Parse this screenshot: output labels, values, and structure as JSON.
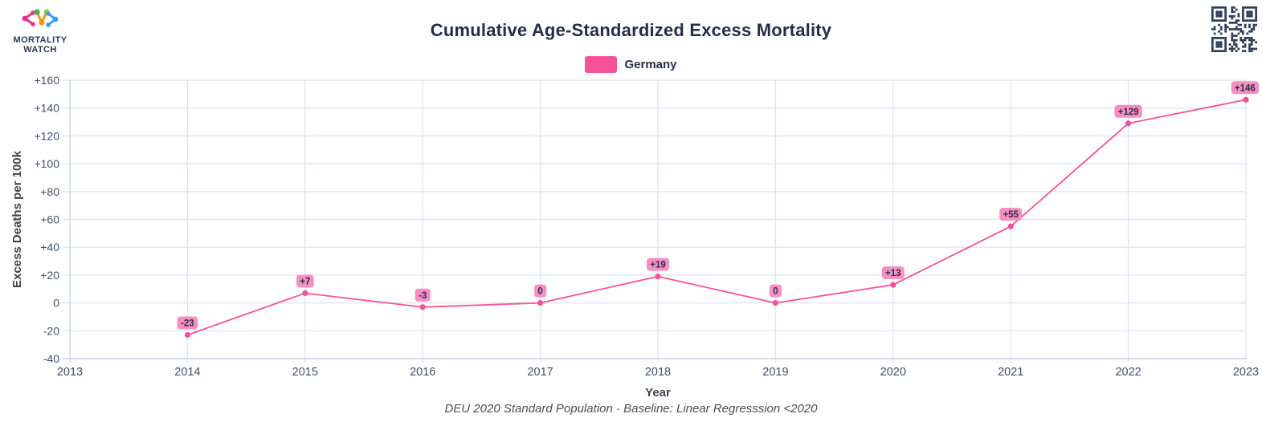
{
  "logo": {
    "line1": "MORTALITY",
    "line2": "WATCH"
  },
  "header": {
    "title": "Cumulative Age-Standardized Excess Mortality"
  },
  "legend": {
    "label": "Germany"
  },
  "caption": "DEU 2020 Standard Population · Baseline: Linear Regresssion <2020",
  "chart_data": {
    "type": "line",
    "title": "Cumulative Age-Standardized Excess Mortality",
    "xlabel": "Year",
    "ylabel": "Excess Deaths per 100k",
    "xlim": [
      2013,
      2023
    ],
    "ylim": [
      -40,
      160
    ],
    "grid": true,
    "legend_position": "top",
    "xticks": [
      2013,
      2014,
      2015,
      2016,
      2017,
      2018,
      2019,
      2020,
      2021,
      2022,
      2023
    ],
    "yticks": [
      {
        "v": 160,
        "label": "+160"
      },
      {
        "v": 140,
        "label": "+140"
      },
      {
        "v": 120,
        "label": "+120"
      },
      {
        "v": 100,
        "label": "+100"
      },
      {
        "v": 80,
        "label": "+80"
      },
      {
        "v": 60,
        "label": "+60"
      },
      {
        "v": 40,
        "label": "+40"
      },
      {
        "v": 20,
        "label": "+20"
      },
      {
        "v": 0,
        "label": "0"
      },
      {
        "v": -20,
        "label": "-20"
      },
      {
        "v": -40,
        "label": "-40"
      }
    ],
    "series": [
      {
        "name": "Germany",
        "x": [
          2014,
          2015,
          2016,
          2017,
          2018,
          2019,
          2020,
          2021,
          2022,
          2023
        ],
        "values": [
          -23,
          7,
          -3,
          0,
          19,
          0,
          13,
          55,
          129,
          146
        ],
        "labels": [
          "-23",
          "+7",
          "-3",
          "0",
          "+19",
          "0",
          "+13",
          "+55",
          "+129",
          "+146"
        ]
      }
    ],
    "caption": "DEU 2020 Standard Population · Baseline: Linear Regresssion <2020"
  },
  "colors": {
    "accent": "#f6519a",
    "label_bg": "#f78fc0",
    "label_text": "#2a2f4a",
    "grid": "#e0e5f4",
    "axis": "#c8d2ec",
    "tick_text": "#434e6b",
    "axis_title": "#3f454c",
    "navy": "#2b3951"
  }
}
